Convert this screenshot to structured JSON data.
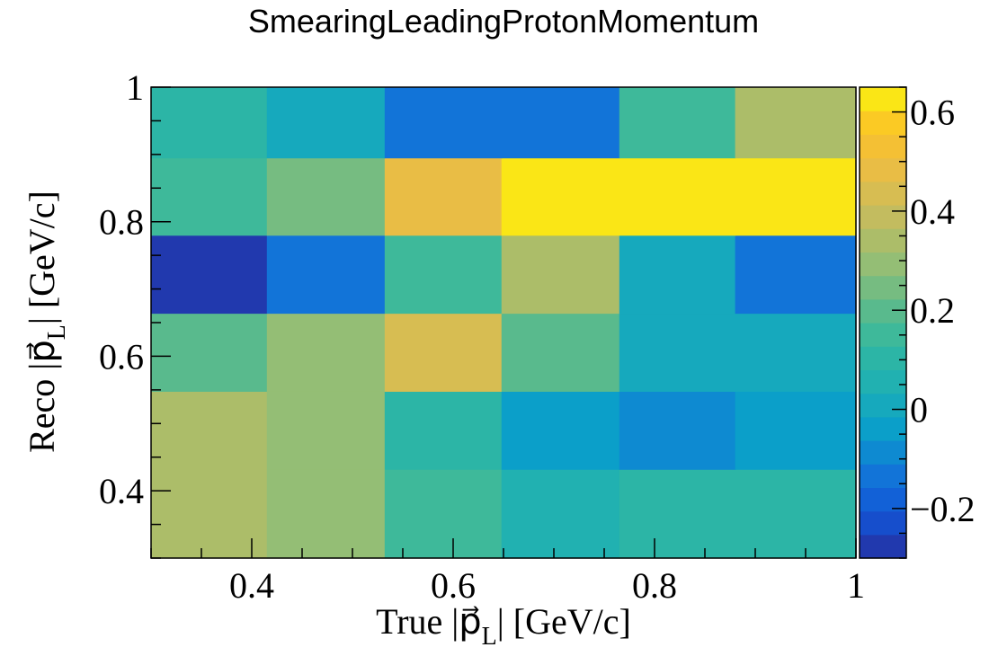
{
  "chart_data": {
    "type": "heatmap",
    "title": "SmearingLeadingProtonMomentum",
    "xlabel": {
      "prefix": "True |",
      "vec": "p",
      "sub": "L",
      "suffix": "| [GeV/c]"
    },
    "ylabel": {
      "prefix": "Reco |",
      "vec": "p",
      "sub": "L",
      "suffix": "| [GeV/c]"
    },
    "xlim": [
      0.3,
      1.0
    ],
    "ylim": [
      0.3,
      1.0
    ],
    "x_edges": [
      0.3,
      0.415,
      0.532,
      0.648,
      0.765,
      0.88,
      1.0
    ],
    "y_edges": [
      0.3,
      0.432,
      0.548,
      0.664,
      0.78,
      0.895,
      1.0
    ],
    "x_ticks": [
      0.4,
      0.6,
      0.8,
      1.0
    ],
    "x_tick_labels": [
      "0.4",
      "0.6",
      "0.8",
      "1"
    ],
    "y_ticks": [
      0.4,
      0.6,
      0.8,
      1.0
    ],
    "y_tick_labels": [
      "0.4",
      "0.6",
      "0.8",
      "1"
    ],
    "z": [
      [
        0.35,
        0.31,
        0.15,
        0.04,
        0.1,
        0.1
      ],
      [
        0.35,
        0.31,
        0.09,
        -0.05,
        -0.09,
        -0.06
      ],
      [
        0.19,
        0.31,
        0.45,
        0.2,
        0.03,
        0.01
      ],
      [
        -0.29,
        -0.15,
        0.14,
        0.36,
        0.03,
        -0.12
      ],
      [
        0.15,
        0.26,
        0.47,
        0.65,
        0.65,
        0.63
      ],
      [
        0.1,
        -0.01,
        -0.15,
        -0.15,
        0.14,
        0.36
      ]
    ],
    "zlim": [
      -0.3,
      0.65
    ],
    "z_ticks": [
      -0.2,
      0,
      0.2,
      0.4,
      0.6
    ],
    "z_tick_labels": [
      "−0.2",
      "0",
      "0.2",
      "0.4",
      "0.6"
    ],
    "colorbar_levels": 20,
    "colormap": [
      "#272f9f",
      "#1254d6",
      "#1277d8",
      "#0a9fca",
      "#1eb0b3",
      "#33b89f",
      "#64bb88",
      "#9bbe72",
      "#c4bc5e",
      "#e8bd47",
      "#fbc128",
      "#f9f40f"
    ],
    "grid": false,
    "legend": "colorbar-right"
  }
}
